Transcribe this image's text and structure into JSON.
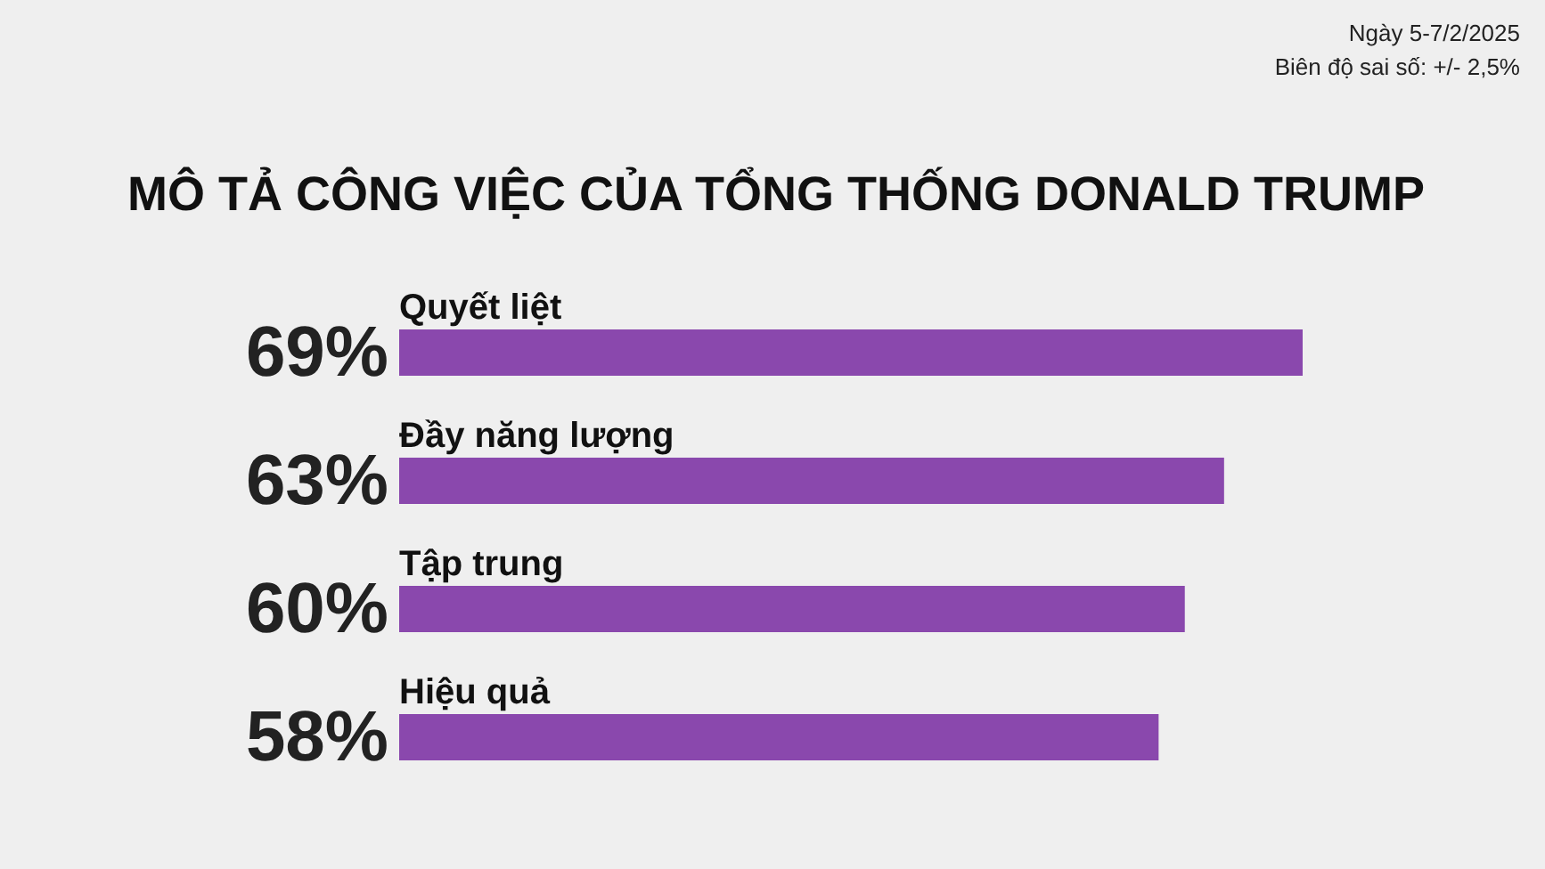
{
  "chart_data": {
    "type": "bar",
    "orientation": "horizontal",
    "title": "MÔ TẢ CÔNG VIỆC CỦA TỔNG THỐNG DONALD TRUMP",
    "categories": [
      "Quyết liệt",
      "Đầy năng lượng",
      "Tập trung",
      "Hiệu quả"
    ],
    "values": [
      69,
      63,
      60,
      58
    ],
    "value_labels": [
      "69%",
      "63%",
      "60%",
      "58%"
    ],
    "color": "#8a48ad",
    "annotations": [
      "Ngày 5-7/2/2025",
      "Biên độ sai số: +/- 2,5%"
    ]
  }
}
